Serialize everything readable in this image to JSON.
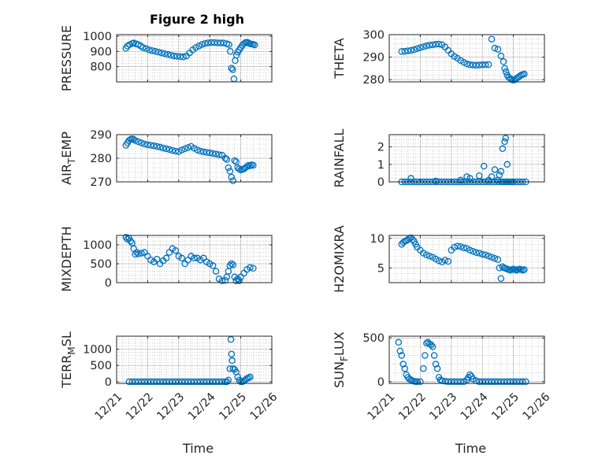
{
  "figure": {
    "title": "Figure 2 high"
  },
  "style": {
    "marker_color": "#0072bd",
    "axis_color": "#262626",
    "grid_color": "#b0b0b0"
  },
  "chart_data": [
    {
      "type": "scatter",
      "ylabel": "PRESSURE",
      "title": "Figure 2 high",
      "xlabel": "",
      "xlim": [
        0,
        5
      ],
      "ylim": [
        700,
        1010
      ],
      "yticks": [
        800,
        900,
        1000
      ],
      "ytick_labels": [
        "800",
        "900",
        "1000"
      ],
      "xticks": [
        0,
        1,
        2,
        3,
        4,
        5
      ],
      "xtick_labels": [],
      "grid": "on",
      "series": [
        {
          "x": [
            0.3,
            0.35,
            0.42,
            0.5,
            0.55,
            0.62,
            0.7,
            0.78,
            0.85,
            0.95,
            1.05,
            1.15,
            1.25,
            1.35,
            1.45,
            1.55,
            1.65,
            1.75,
            1.85,
            1.95,
            2.05,
            2.15,
            2.25,
            2.35,
            2.45,
            2.55,
            2.65,
            2.75,
            2.85,
            2.95,
            3.05,
            3.15,
            3.25,
            3.35,
            3.45,
            3.55,
            3.62,
            3.66,
            3.7,
            3.74,
            3.78,
            3.82,
            3.86,
            3.9,
            3.95,
            4.0,
            4.05,
            4.1,
            4.15,
            4.2,
            4.25,
            4.3,
            4.35,
            4.4,
            4.45
          ],
          "y": [
            920,
            935,
            945,
            952,
            955,
            950,
            945,
            935,
            925,
            918,
            910,
            905,
            900,
            895,
            890,
            885,
            880,
            875,
            870,
            868,
            866,
            864,
            870,
            890,
            910,
            925,
            935,
            945,
            952,
            956,
            958,
            958,
            956,
            955,
            955,
            950,
            945,
            900,
            790,
            780,
            720,
            840,
            875,
            895,
            910,
            925,
            940,
            950,
            958,
            960,
            955,
            950,
            948,
            946,
            942
          ]
        }
      ]
    },
    {
      "type": "scatter",
      "ylabel": "THETA",
      "xlabel": "",
      "xlim": [
        0,
        5
      ],
      "ylim": [
        279,
        300
      ],
      "yticks": [
        280,
        290,
        300
      ],
      "ytick_labels": [
        "280",
        "290",
        "300"
      ],
      "xticks": [
        0,
        1,
        2,
        3,
        4,
        5
      ],
      "xtick_labels": [],
      "grid": "on",
      "series": [
        {
          "x": [
            0.4,
            0.5,
            0.6,
            0.7,
            0.8,
            0.9,
            1.0,
            1.1,
            1.2,
            1.3,
            1.4,
            1.5,
            1.6,
            1.7,
            1.8,
            1.9,
            2.0,
            2.1,
            2.2,
            2.3,
            2.4,
            2.5,
            2.6,
            2.7,
            2.8,
            2.9,
            3.0,
            3.1,
            3.2,
            3.3,
            3.4,
            3.5,
            3.6,
            3.68,
            3.72,
            3.76,
            3.8,
            3.85,
            3.9,
            3.95,
            4.0,
            4.05,
            4.1,
            4.15,
            4.2,
            4.25,
            4.3,
            4.35
          ],
          "y": [
            292.5,
            292.6,
            292.8,
            293,
            293.3,
            293.8,
            294.2,
            294.6,
            295,
            295.3,
            295.5,
            295.7,
            295.8,
            295.5,
            294.5,
            293,
            291.5,
            290.3,
            289.5,
            288.5,
            287.7,
            287,
            286.6,
            286.5,
            286.4,
            286.5,
            286.6,
            286.6,
            286.7,
            298,
            294,
            293.5,
            290.5,
            288,
            285,
            283.5,
            282,
            281,
            280.5,
            280,
            279.8,
            280,
            280.5,
            281,
            281.5,
            282,
            282.3,
            282.5
          ]
        }
      ]
    },
    {
      "type": "scatter",
      "ylabel": "AIR_TEMP",
      "ylabel_parts": [
        "AIR",
        "T",
        "EMP"
      ],
      "xlabel": "",
      "xlim": [
        0,
        5
      ],
      "ylim": [
        270,
        290
      ],
      "yticks": [
        270,
        280,
        290
      ],
      "ytick_labels": [
        "270",
        "280",
        "290"
      ],
      "xticks": [
        0,
        1,
        2,
        3,
        4,
        5
      ],
      "xtick_labels": [],
      "grid": "on",
      "series": [
        {
          "x": [
            0.3,
            0.35,
            0.4,
            0.45,
            0.5,
            0.55,
            0.6,
            0.7,
            0.8,
            0.9,
            1.0,
            1.1,
            1.2,
            1.3,
            1.4,
            1.5,
            1.6,
            1.7,
            1.8,
            1.9,
            2.0,
            2.1,
            2.2,
            2.3,
            2.4,
            2.5,
            2.6,
            2.7,
            2.8,
            2.9,
            3.0,
            3.1,
            3.2,
            3.3,
            3.4,
            3.5,
            3.55,
            3.6,
            3.65,
            3.7,
            3.75,
            3.8,
            3.85,
            3.9,
            3.95,
            4.0,
            4.05,
            4.1,
            4.15,
            4.2,
            4.25,
            4.3,
            4.35,
            4.4
          ],
          "y": [
            285.5,
            286.5,
            287.5,
            288,
            288.2,
            288,
            287.5,
            287,
            286.5,
            286,
            285.7,
            285.5,
            285.3,
            285,
            284.7,
            284.3,
            284,
            283.7,
            283.3,
            283,
            282.8,
            283.5,
            284,
            284.5,
            285,
            284.2,
            283.5,
            283,
            282.7,
            282.5,
            282.3,
            282,
            281.8,
            281.5,
            281.3,
            280,
            279.5,
            276,
            274.5,
            272,
            270.5,
            279,
            278.5,
            276,
            275.5,
            275,
            275.3,
            275.5,
            276,
            276.5,
            277,
            276.8,
            277.2,
            277
          ]
        }
      ]
    },
    {
      "type": "scatter",
      "ylabel": "RAINFALL",
      "xlabel": "",
      "xlim": [
        0,
        5
      ],
      "ylim": [
        0,
        2.7
      ],
      "yticks": [
        0,
        1,
        2
      ],
      "ytick_labels": [
        "0",
        "1",
        "2"
      ],
      "xticks": [
        0,
        1,
        2,
        3,
        4,
        5
      ],
      "xtick_labels": [],
      "grid": "on",
      "series": [
        {
          "x": [
            0.4,
            0.5,
            0.6,
            0.7,
            0.8,
            0.9,
            1.0,
            1.1,
            1.2,
            1.3,
            1.4,
            1.5,
            1.6,
            1.7,
            1.8,
            1.9,
            2.0,
            2.1,
            2.2,
            2.3,
            2.4,
            2.5,
            2.6,
            2.7,
            2.8,
            2.9,
            3.0,
            3.1,
            3.2,
            3.3,
            3.4,
            3.5,
            3.6,
            3.65,
            3.7,
            3.75,
            3.8,
            3.85,
            3.9,
            3.95,
            4.0,
            4.1,
            4.2,
            4.3,
            4.4,
            0.7,
            1.5,
            2.3,
            2.5,
            2.6,
            2.9,
            3.05,
            3.2,
            3.3,
            3.4,
            3.5,
            3.55,
            3.6,
            3.65,
            3.72,
            3.75,
            3.8
          ],
          "y": [
            0,
            0,
            0,
            0,
            0,
            0,
            0,
            0,
            0,
            0,
            0,
            0,
            0,
            0,
            0,
            0,
            0,
            0,
            0,
            0,
            0,
            0,
            0,
            0,
            0,
            0,
            0,
            0,
            0,
            0,
            0,
            0,
            0,
            0,
            0,
            0,
            0,
            0,
            0,
            0,
            0,
            0,
            0,
            0,
            0,
            0.2,
            0.05,
            0.1,
            0.3,
            0.2,
            0.35,
            0.9,
            0.1,
            0.3,
            0.7,
            0.1,
            0.4,
            0.6,
            1.9,
            2.3,
            2.5,
            1.0
          ]
        }
      ]
    },
    {
      "type": "scatter",
      "ylabel": "MIXDEPTH",
      "xlabel": "",
      "xlim": [
        0,
        5
      ],
      "ylim": [
        0,
        1250
      ],
      "yticks": [
        0,
        500,
        1000
      ],
      "ytick_labels": [
        "0",
        "500",
        "1000"
      ],
      "xticks": [
        0,
        1,
        2,
        3,
        4,
        5
      ],
      "xtick_labels": [],
      "grid": "on",
      "series": [
        {
          "x": [
            0.3,
            0.35,
            0.4,
            0.45,
            0.5,
            0.55,
            0.6,
            0.65,
            0.7,
            0.8,
            0.9,
            1.0,
            1.1,
            1.2,
            1.3,
            1.4,
            1.5,
            1.6,
            1.7,
            1.8,
            1.9,
            2.0,
            2.1,
            2.2,
            2.3,
            2.4,
            2.5,
            2.6,
            2.7,
            2.8,
            2.9,
            3.0,
            3.1,
            3.2,
            3.3,
            3.4,
            3.5,
            3.55,
            3.6,
            3.65,
            3.7,
            3.75,
            3.8,
            3.85,
            3.9,
            3.95,
            4.0,
            4.1,
            4.2,
            4.3,
            4.4
          ],
          "y": [
            1200,
            1150,
            1180,
            1100,
            1050,
            900,
            750,
            800,
            760,
            780,
            800,
            700,
            600,
            550,
            620,
            500,
            580,
            650,
            800,
            900,
            850,
            700,
            650,
            500,
            600,
            700,
            650,
            650,
            600,
            650,
            550,
            500,
            450,
            300,
            100,
            50,
            60,
            150,
            300,
            450,
            500,
            470,
            150,
            50,
            100,
            50,
            150,
            250,
            350,
            400,
            380
          ]
        }
      ]
    },
    {
      "type": "scatter",
      "ylabel": "H2OMIXRA",
      "xlabel": "",
      "xlim": [
        0,
        5
      ],
      "ylim": [
        2.5,
        10.5
      ],
      "yticks": [
        5,
        10
      ],
      "ytick_labels": [
        "5",
        "10"
      ],
      "xticks": [
        0,
        1,
        2,
        3,
        4,
        5
      ],
      "xtick_labels": [],
      "grid": "on",
      "series": [
        {
          "x": [
            0.4,
            0.45,
            0.5,
            0.55,
            0.6,
            0.65,
            0.7,
            0.75,
            0.8,
            0.85,
            0.9,
            1.0,
            1.1,
            1.2,
            1.3,
            1.4,
            1.5,
            1.6,
            1.7,
            1.8,
            1.9,
            2.0,
            2.1,
            2.2,
            2.3,
            2.4,
            2.5,
            2.6,
            2.7,
            2.8,
            2.9,
            3.0,
            3.1,
            3.2,
            3.3,
            3.4,
            3.5,
            3.55,
            3.6,
            3.65,
            3.7,
            3.75,
            3.8,
            3.85,
            3.9,
            3.95,
            4.0,
            4.05,
            4.1,
            4.15,
            4.2,
            4.25,
            4.3,
            4.35
          ],
          "y": [
            9,
            9.3,
            9.5,
            9.6,
            9.8,
            10.0,
            10.1,
            9.8,
            9.5,
            9.0,
            8.5,
            8.0,
            7.5,
            7.2,
            7.0,
            6.8,
            6.5,
            6.2,
            6.0,
            6.3,
            6.1,
            8.0,
            8.5,
            8.7,
            8.6,
            8.4,
            8.3,
            8.0,
            7.8,
            7.6,
            7.5,
            7.3,
            7.2,
            7.0,
            6.8,
            6.6,
            6.4,
            5.0,
            3.2,
            5.2,
            5.0,
            4.9,
            4.8,
            4.7,
            4.6,
            4.7,
            4.8,
            4.7,
            4.6,
            4.7,
            4.8,
            4.7,
            4.6,
            4.7
          ]
        }
      ]
    },
    {
      "type": "scatter",
      "ylabel": "TERR_MSL",
      "ylabel_parts": [
        "TERR",
        "M",
        "SL"
      ],
      "xlabel": "Time",
      "xlim": [
        0,
        5
      ],
      "ylim": [
        -50,
        1400
      ],
      "yticks": [
        0,
        500,
        1000
      ],
      "ytick_labels": [
        "0",
        "500",
        "1000"
      ],
      "xticks": [
        0,
        1,
        2,
        3,
        4,
        5
      ],
      "xtick_labels": [
        "12/21",
        "12/22",
        "12/23",
        "12/24",
        "12/25",
        "12/26"
      ],
      "grid": "on",
      "series": [
        {
          "x": [
            0.4,
            0.5,
            0.6,
            0.7,
            0.8,
            0.9,
            1.0,
            1.1,
            1.2,
            1.3,
            1.4,
            1.5,
            1.6,
            1.7,
            1.8,
            1.9,
            2.0,
            2.1,
            2.2,
            2.3,
            2.4,
            2.5,
            2.6,
            2.7,
            2.8,
            2.9,
            3.0,
            3.1,
            3.2,
            3.3,
            3.4,
            3.5,
            3.55,
            3.6,
            3.65,
            3.68,
            3.7,
            3.72,
            3.75,
            3.8,
            3.85,
            3.9,
            3.95,
            4.0,
            4.05,
            4.1,
            4.15,
            4.2,
            4.25,
            4.3
          ],
          "y": [
            0,
            0,
            0,
            0,
            0,
            0,
            0,
            0,
            0,
            0,
            0,
            0,
            0,
            0,
            0,
            0,
            0,
            0,
            0,
            0,
            0,
            0,
            0,
            0,
            0,
            0,
            0,
            0,
            0,
            0,
            0,
            0,
            0,
            50,
            400,
            1300,
            850,
            650,
            400,
            380,
            300,
            150,
            50,
            0,
            0,
            30,
            60,
            100,
            120,
            150
          ]
        }
      ]
    },
    {
      "type": "scatter",
      "ylabel": "SUN_FLUX",
      "ylabel_parts": [
        "SUN",
        "F",
        "LUX"
      ],
      "xlabel": "Time",
      "xlim": [
        0,
        5
      ],
      "ylim": [
        -20,
        520
      ],
      "yticks": [
        0,
        500
      ],
      "ytick_labels": [
        "0",
        "500"
      ],
      "xticks": [
        0,
        1,
        2,
        3,
        4,
        5
      ],
      "xtick_labels": [
        "12/21",
        "12/22",
        "12/23",
        "12/24",
        "12/25",
        "12/26"
      ],
      "grid": "on",
      "series": [
        {
          "x": [
            0.3,
            0.35,
            0.4,
            0.45,
            0.5,
            0.55,
            0.6,
            0.65,
            0.7,
            0.75,
            0.8,
            0.85,
            0.9,
            1.0,
            1.1,
            1.15,
            1.2,
            1.25,
            1.3,
            1.35,
            1.4,
            1.45,
            1.5,
            1.55,
            1.6,
            1.65,
            1.7,
            1.8,
            1.9,
            2.0,
            2.1,
            2.2,
            2.3,
            2.4,
            2.5,
            2.55,
            2.6,
            2.65,
            2.7,
            2.8,
            2.9,
            3.0,
            3.1,
            3.2,
            3.3,
            3.4,
            3.5,
            3.6,
            3.7,
            3.8,
            3.9,
            4.0,
            4.1,
            4.2,
            4.3,
            4.4
          ],
          "y": [
            450,
            350,
            300,
            200,
            150,
            80,
            50,
            30,
            20,
            10,
            5,
            0,
            0,
            0,
            150,
            300,
            440,
            450,
            430,
            420,
            400,
            300,
            200,
            150,
            50,
            20,
            10,
            5,
            0,
            0,
            0,
            0,
            0,
            0,
            20,
            50,
            80,
            60,
            30,
            10,
            0,
            0,
            0,
            0,
            0,
            0,
            0,
            0,
            0,
            0,
            0,
            0,
            0,
            0,
            0,
            0
          ]
        }
      ]
    }
  ]
}
